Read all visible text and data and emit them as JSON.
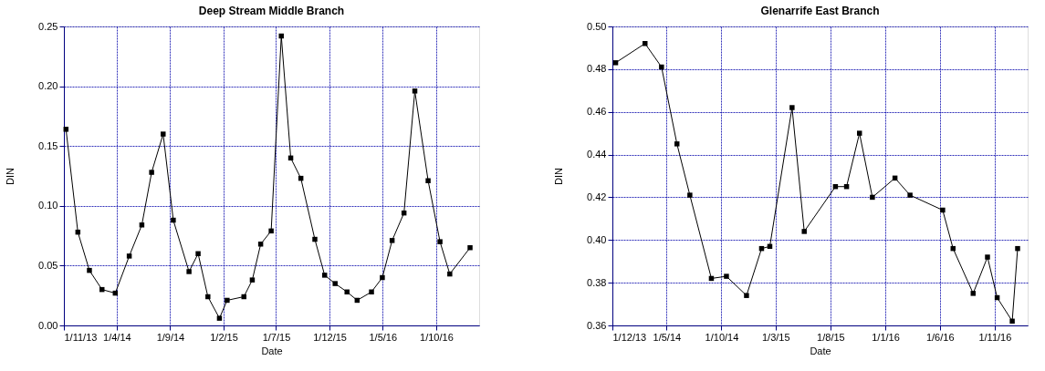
{
  "chart_data": [
    {
      "type": "line",
      "title": "Deep Stream Middle Branch",
      "xlabel": "Date",
      "ylabel": "DIN",
      "color": "#000000",
      "marker": "square",
      "line_style": "solid",
      "grid": true,
      "x": [
        "2013-11-07",
        "2013-12-11",
        "2014-01-13",
        "2014-02-18",
        "2014-03-28",
        "2014-05-07",
        "2014-06-12",
        "2014-07-10",
        "2014-08-12",
        "2014-09-10",
        "2014-10-25",
        "2014-11-20",
        "2014-12-18",
        "2015-01-20",
        "2015-02-11",
        "2015-03-31",
        "2015-04-24",
        "2015-05-18",
        "2015-06-17",
        "2015-07-16",
        "2015-08-12",
        "2015-09-10",
        "2015-10-20",
        "2015-11-17",
        "2015-12-17",
        "2016-01-20",
        "2016-02-18",
        "2016-03-30",
        "2016-04-30",
        "2016-05-28",
        "2016-07-01",
        "2016-08-01",
        "2016-09-08",
        "2016-10-12",
        "2016-11-09",
        "2017-01-06"
      ],
      "values": [
        0.164,
        0.078,
        0.046,
        0.03,
        0.027,
        0.058,
        0.084,
        0.128,
        0.16,
        0.088,
        0.045,
        0.06,
        0.024,
        0.006,
        0.021,
        0.024,
        0.038,
        0.068,
        0.079,
        0.242,
        0.14,
        0.123,
        0.072,
        0.042,
        0.035,
        0.028,
        0.021,
        0.028,
        0.04,
        0.071,
        0.094,
        0.196,
        0.121,
        0.07,
        0.043,
        0.065
      ],
      "xlim": [
        "2013-11-01",
        "2017-02-01"
      ],
      "ylim": [
        0,
        0.25
      ],
      "xticks": [
        {
          "value": "2013-11-01",
          "label": "1/11/13"
        },
        {
          "value": "2014-04-01",
          "label": "1/4/14"
        },
        {
          "value": "2014-09-01",
          "label": "1/9/14"
        },
        {
          "value": "2015-02-01",
          "label": "1/2/15"
        },
        {
          "value": "2015-07-01",
          "label": "1/7/15"
        },
        {
          "value": "2015-12-01",
          "label": "1/12/15"
        },
        {
          "value": "2016-05-01",
          "label": "1/5/16"
        },
        {
          "value": "2016-10-01",
          "label": "1/10/16"
        }
      ],
      "yticks": [
        {
          "value": 0,
          "label": "0.00"
        },
        {
          "value": 0.05,
          "label": "0.05"
        },
        {
          "value": 0.1,
          "label": "0.10"
        },
        {
          "value": 0.15,
          "label": "0.15"
        },
        {
          "value": 0.2,
          "label": "0.20"
        },
        {
          "value": 0.25,
          "label": "0.25"
        }
      ]
    },
    {
      "type": "line",
      "title": "Glenarrife East Branch",
      "xlabel": "Date",
      "ylabel": "DIN",
      "color": "#000000",
      "marker": "square",
      "line_style": "solid",
      "grid": true,
      "x": [
        "2013-12-10",
        "2014-03-02",
        "2014-04-17",
        "2014-05-30",
        "2014-07-05",
        "2014-09-03",
        "2014-10-15",
        "2014-12-10",
        "2015-01-21",
        "2015-02-13",
        "2015-04-16",
        "2015-05-20",
        "2015-08-15",
        "2015-09-15",
        "2015-10-21",
        "2015-11-26",
        "2016-01-28",
        "2016-03-10",
        "2016-06-09",
        "2016-07-08",
        "2016-09-02",
        "2016-10-12",
        "2016-11-08",
        "2016-12-20",
        "2017-01-04"
      ],
      "values": [
        0.483,
        0.492,
        0.481,
        0.445,
        0.421,
        0.382,
        0.383,
        0.374,
        0.396,
        0.397,
        0.462,
        0.404,
        0.425,
        0.425,
        0.45,
        0.42,
        0.429,
        0.421,
        0.414,
        0.396,
        0.375,
        0.392,
        0.373,
        0.362,
        0.396
      ],
      "xlim": [
        "2013-12-01",
        "2017-02-01"
      ],
      "ylim": [
        0.36,
        0.5
      ],
      "xticks": [
        {
          "value": "2013-12-01",
          "label": "1/12/13"
        },
        {
          "value": "2014-05-01",
          "label": "1/5/14"
        },
        {
          "value": "2014-10-01",
          "label": "1/10/14"
        },
        {
          "value": "2015-03-01",
          "label": "1/3/15"
        },
        {
          "value": "2015-08-01",
          "label": "1/8/15"
        },
        {
          "value": "2016-01-01",
          "label": "1/1/16"
        },
        {
          "value": "2016-06-01",
          "label": "1/6/16"
        },
        {
          "value": "2016-11-01",
          "label": "1/11/16"
        }
      ],
      "yticks": [
        {
          "value": 0.36,
          "label": "0.36"
        },
        {
          "value": 0.38,
          "label": "0.38"
        },
        {
          "value": 0.4,
          "label": "0.40"
        },
        {
          "value": 0.42,
          "label": "0.42"
        },
        {
          "value": 0.44,
          "label": "0.44"
        },
        {
          "value": 0.46,
          "label": "0.46"
        },
        {
          "value": 0.48,
          "label": "0.48"
        },
        {
          "value": 0.5,
          "label": "0.50"
        }
      ]
    }
  ]
}
